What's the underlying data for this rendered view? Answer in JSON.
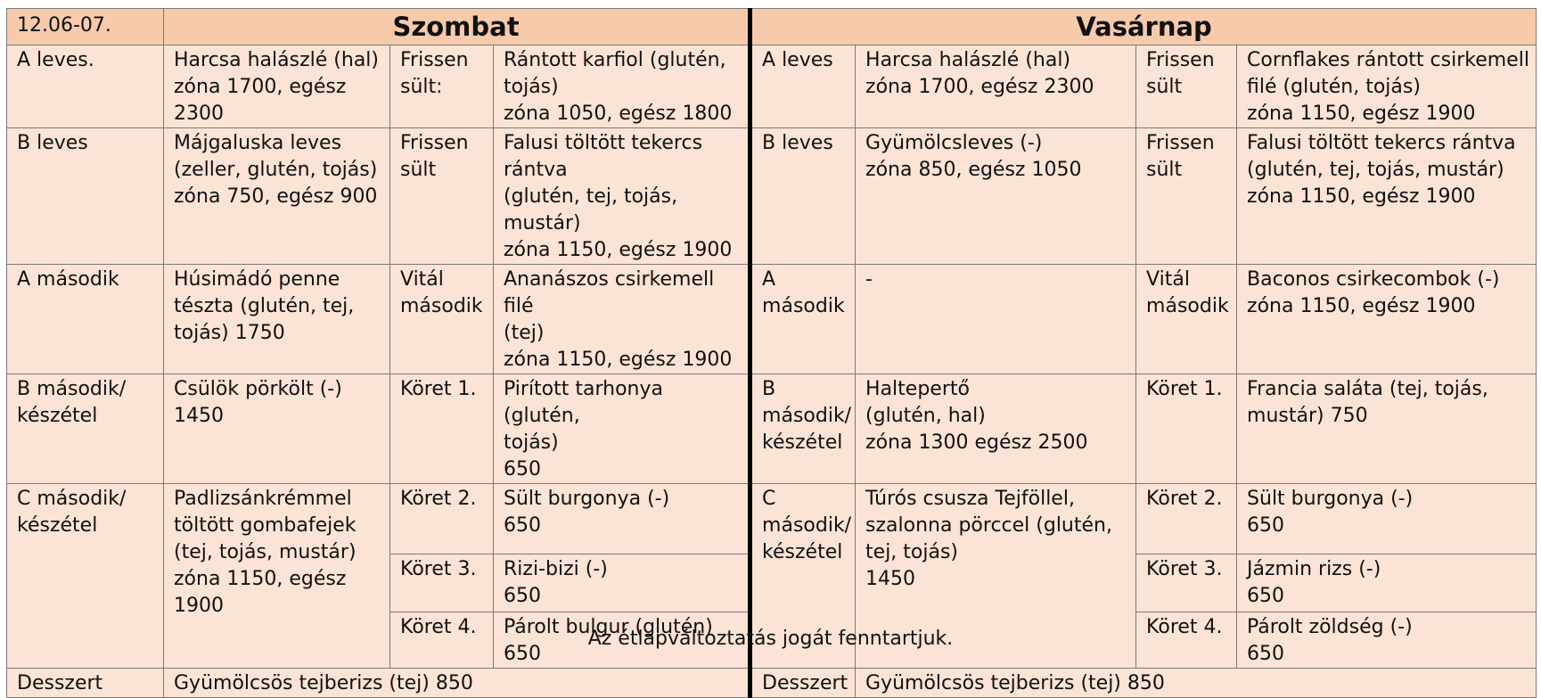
{
  "date": "12.06-07.",
  "saturday": {
    "title": "Szombat",
    "rows": [
      {
        "label": "A leves.",
        "dish": "Harcsa halászlé (hal)\nzóna 1700, egész 2300",
        "side_label": "Frissen\nsült:",
        "side": "Rántott karfiol (glutén,\ntojás)\nzóna 1050, egész 1800"
      },
      {
        "label": "B leves",
        "dish": "Májgaluska leves\n(zeller, glutén, tojás)\nzóna 750, egész 900",
        "side_label": "Frissen\nsült",
        "side": "Falusi töltött tekercs\nrántva\n(glutén, tej, tojás, mustár)\nzóna 1150, egész 1900"
      },
      {
        "label": "A második",
        "dish": "Húsimádó penne\ntészta (glutén, tej,\ntojás) 1750",
        "side_label": "Vitál\nmásodik",
        "side": "Ananászos csirkemell filé\n(tej)\nzóna 1150, egész 1900"
      },
      {
        "label": "B második/\nkészétel",
        "dish": "Csülök pörkölt (-)\n1450",
        "side_label": "Köret 1.",
        "side": "Pirított tarhonya (glutén,\ntojás)\n650"
      },
      {
        "label": "C második/\nkészétel",
        "dish": "Padlizsánkrémmel\ntöltött gombafejek\n(tej, tojás, mustár)\nzóna 1150, egész 1900",
        "side_label": "Köret 2.",
        "side": "Sült burgonya (-)\n650"
      }
    ],
    "extra_sides": [
      {
        "side_label": "Köret 3.",
        "side": "Rizi-bizi (-)\n650"
      },
      {
        "side_label": "Köret 4.",
        "side": "Párolt bulgur (glutén)\n650"
      }
    ],
    "dessert_label": "Desszert",
    "dessert": "Gyümölcsös tejberizs (tej) 850"
  },
  "sunday": {
    "title": "Vasárnap",
    "rows": [
      {
        "label": "A leves",
        "dish": "Harcsa halászlé (hal)\nzóna 1700, egész 2300",
        "side_label": "Frissen\nsült",
        "side": "Cornflakes rántott csirkemell\nfilé (glutén, tojás)\nzóna 1150, egész 1900"
      },
      {
        "label": "B leves",
        "dish": "Gyümölcsleves (-)\nzóna 850, egész 1050",
        "side_label": "Frissen\nsült",
        "side": "Falusi töltött tekercs rántva\n(glutén, tej, tojás, mustár)\nzóna 1150, egész 1900"
      },
      {
        "label": "A\nmásodik",
        "dish": "-",
        "side_label": "Vitál\nmásodik",
        "side": "Baconos csirkecombok (-)\nzóna 1150, egész 1900"
      },
      {
        "label": "B\nmásodik/\nkészétel",
        "dish": "Haltepertő\n(glutén, hal)\nzóna 1300 egész 2500",
        "side_label": "Köret 1.",
        "side": "Francia saláta (tej, tojás,\nmustár) 750"
      },
      {
        "label": "C\nmásodik/\nkészétel",
        "dish": "Túrós csusza Tejföllel,\nszalonna pörccel (glutén,\ntej, tojás)\n1450",
        "side_label": "Köret 2.",
        "side": "Sült burgonya (-)\n650"
      }
    ],
    "extra_sides": [
      {
        "side_label": "Köret 3.",
        "side": "Jázmin rizs (-)\n650"
      },
      {
        "side_label": "Köret 4.",
        "side": "Párolt zöldség (-)\n650"
      }
    ],
    "dessert_label": "Desszert",
    "dessert": "Gyümölcsös tejberizs (tej) 850"
  },
  "footer_note": "Az étlapváltoztatás jogát fenntartjuk."
}
